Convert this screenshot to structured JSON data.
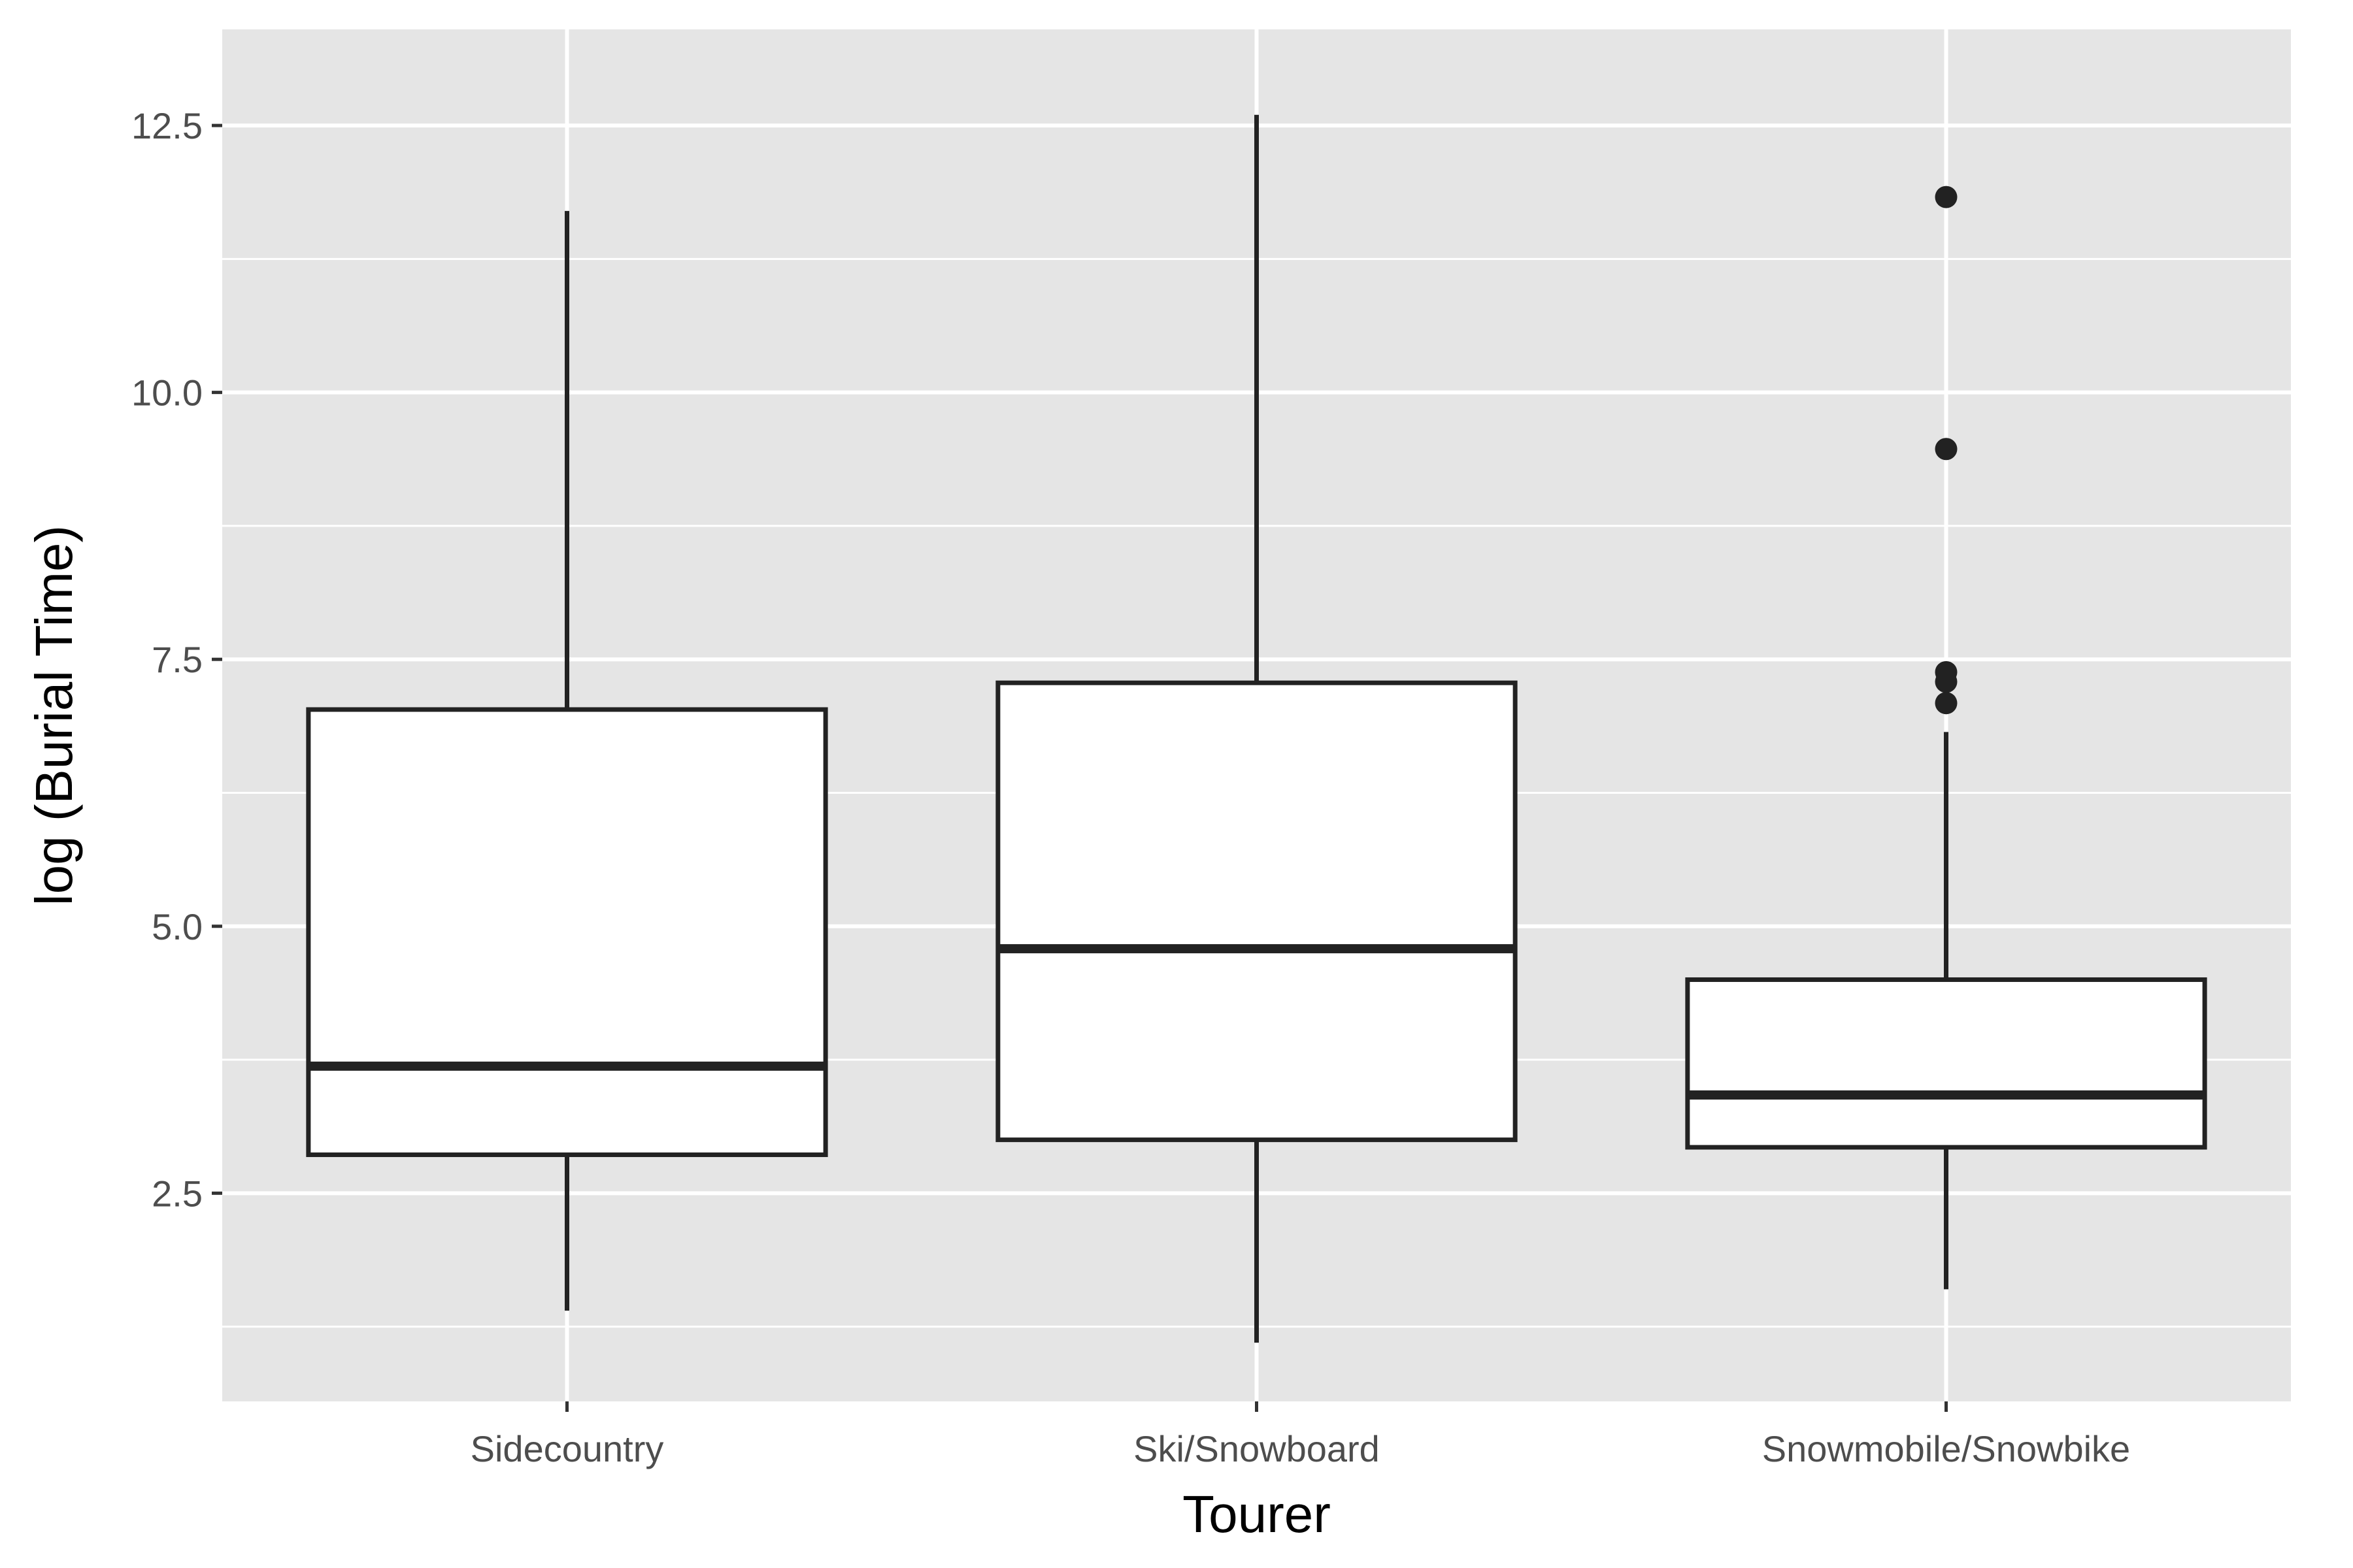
{
  "chart_data": {
    "type": "box",
    "title": "",
    "xlabel": "Tourer",
    "ylabel": "log (Burial Time)",
    "ylim": [
      0.55,
      13.4
    ],
    "yticks": [
      "2.5",
      "5.0",
      "7.5",
      "10.0",
      "12.5"
    ],
    "ytick_values": [
      2.5,
      5.0,
      7.5,
      10.0,
      12.5
    ],
    "grid": true,
    "categories": [
      "Sidecountry",
      "Ski/Snowboard",
      "Snowmobile/Snowbike"
    ],
    "boxes": [
      {
        "category": "Sidecountry",
        "whisker_low": 1.4,
        "q1": 2.86,
        "median": 3.69,
        "q3": 7.03,
        "whisker_high": 11.7,
        "outliers": []
      },
      {
        "category": "Ski/Snowboard",
        "whisker_low": 1.1,
        "q1": 3.0,
        "median": 4.79,
        "q3": 7.28,
        "whisker_high": 12.6,
        "outliers": []
      },
      {
        "category": "Snowmobile/Snowbike",
        "whisker_low": 1.6,
        "q1": 2.93,
        "median": 3.42,
        "q3": 4.5,
        "whisker_high": 6.82,
        "outliers": [
          7.09,
          7.29,
          7.38,
          9.47,
          11.83
        ]
      }
    ],
    "colors": {
      "panel": "#e5e5e5",
      "grid": "#ffffff",
      "box_fill": "#ffffff",
      "box_stroke": "#222222",
      "tick_text": "#4d4d4d"
    }
  }
}
